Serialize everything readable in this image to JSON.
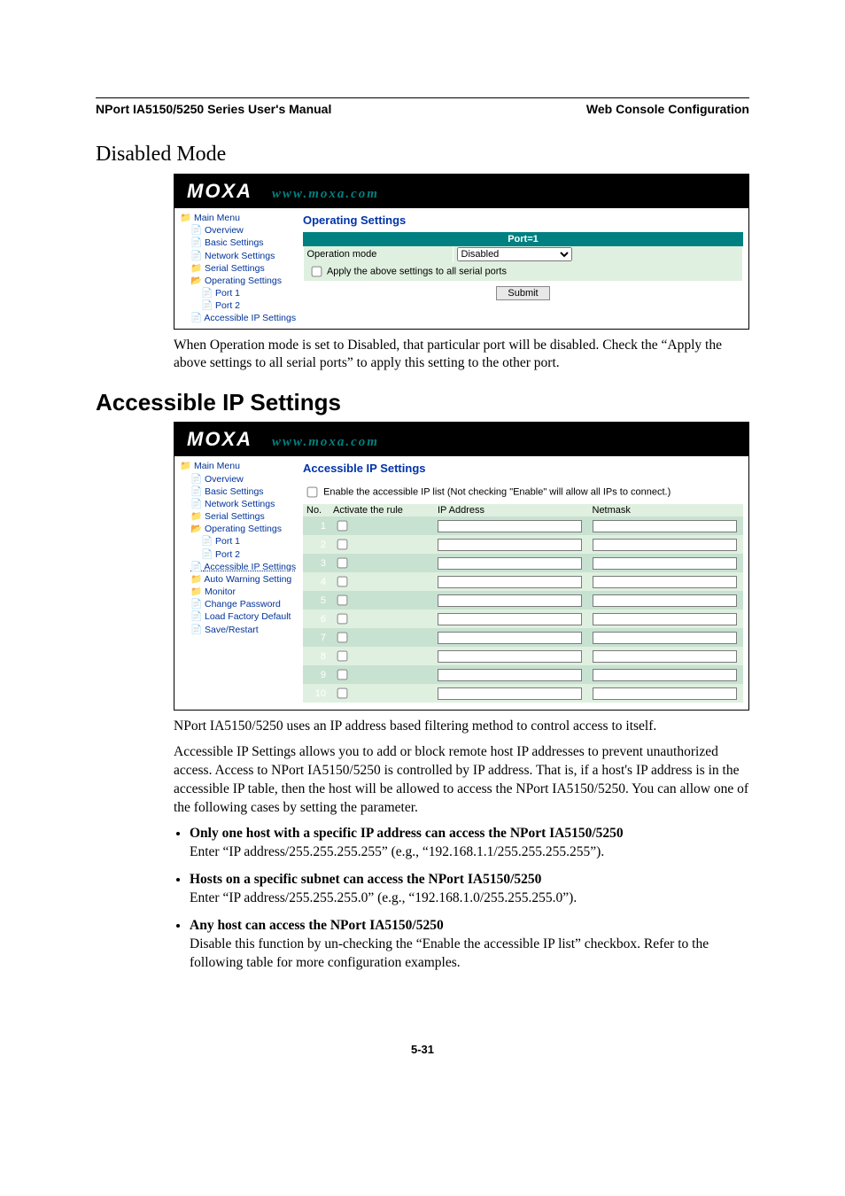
{
  "header": {
    "left": "NPort IA5150/5250 Series User's Manual",
    "right": "Web Console Configuration"
  },
  "section_sub": "Disabled Mode",
  "section": "Accessible IP Settings",
  "page_num": "5-31",
  "moxa": {
    "logo": "MOXA",
    "url": "www.moxa.com"
  },
  "tree1": {
    "main": "Main Menu",
    "items": [
      "Overview",
      "Basic Settings",
      "Network Settings",
      "Serial Settings",
      "Operating Settings",
      "Port 1",
      "Port 2",
      "Accessible IP Settings"
    ]
  },
  "tree2": {
    "main": "Main Menu",
    "items": [
      "Overview",
      "Basic Settings",
      "Network Settings",
      "Serial Settings",
      "Operating Settings",
      "Port 1",
      "Port 2",
      "Accessible IP Settings",
      "Auto Warning Setting",
      "Monitor",
      "Change Password",
      "Load Factory Default",
      "Save/Restart"
    ]
  },
  "panel1": {
    "title": "Operating Settings",
    "port_header": "Port=1",
    "op_mode_label": "Operation mode",
    "op_mode_value": "Disabled",
    "apply_label": "Apply the above settings to all serial ports",
    "submit": "Submit"
  },
  "panel2": {
    "title": "Accessible IP Settings",
    "enable_label": "Enable the accessible IP list (Not checking \"Enable\" will allow all IPs to connect.)",
    "cols": {
      "no": "No.",
      "activate": "Activate the rule",
      "ip": "IP Address",
      "netmask": "Netmask"
    },
    "rows": [
      1,
      2,
      3,
      4,
      5,
      6,
      7,
      8,
      9,
      10
    ]
  },
  "text1": "When Operation mode is set to Disabled, that particular port will be disabled. Check the “Apply the above settings to all serial ports” to apply this setting to the other port.",
  "text2": "NPort IA5150/5250 uses an IP address based filtering method to control access to itself.",
  "text3": "Accessible IP Settings allows you to add or block remote host IP addresses to prevent unauthorized access. Access to NPort IA5150/5250 is controlled by IP address. That is, if a host's IP address is in the accessible IP table, then the host will be allowed to access the NPort IA5150/5250. You can allow one of the following cases by setting the parameter.",
  "bullets": {
    "b1": {
      "lead": "Only one host with a specific IP address can access the NPort IA5150/5250",
      "body": "Enter “IP address/255.255.255.255” (e.g., “192.168.1.1/255.255.255.255”)."
    },
    "b2": {
      "lead": "Hosts on a specific subnet can access the NPort IA5150/5250",
      "body": "Enter “IP address/255.255.255.0” (e.g., “192.168.1.0/255.255.255.0”)."
    },
    "b3": {
      "lead": "Any host can access the NPort IA5150/5250",
      "body": "Disable this function by un-checking the “Enable the accessible IP list” checkbox. Refer to the following table for more configuration examples."
    }
  }
}
